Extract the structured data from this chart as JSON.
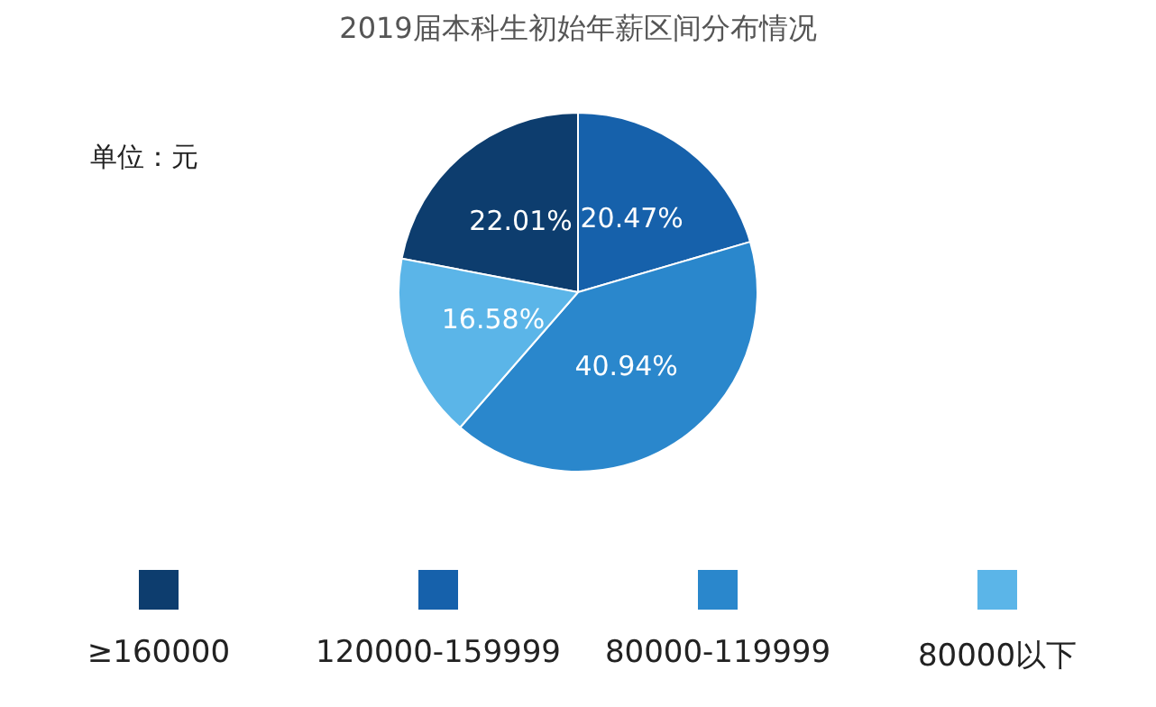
{
  "chart_data": {
    "type": "pie",
    "title": "2019届本科生初始年薪区间分布情况",
    "annotations": [
      "单位：元"
    ],
    "categories": [
      "≥160000",
      "120000-159999",
      "80000-119999",
      "80000以下"
    ],
    "values": [
      22.01,
      20.47,
      40.94,
      16.58
    ],
    "value_labels": [
      "22.01%",
      "20.47%",
      "40.94%",
      "16.58%"
    ],
    "colors": [
      "#0d3d6e",
      "#1661ab",
      "#2a87cc",
      "#5bb5e8"
    ],
    "legend": "bottom"
  }
}
